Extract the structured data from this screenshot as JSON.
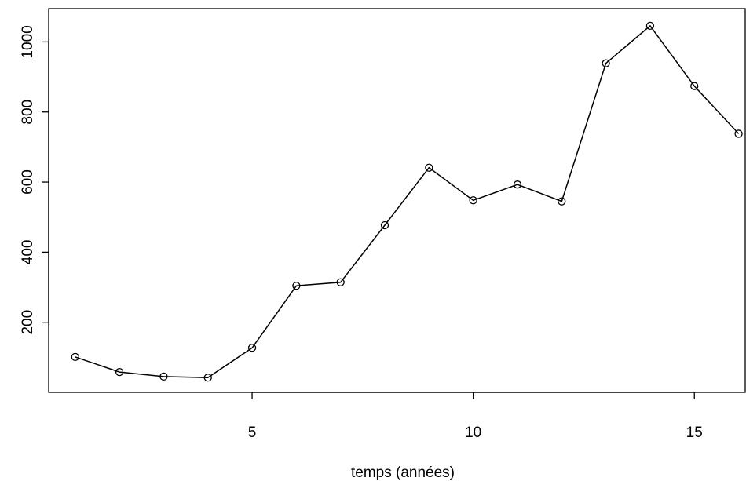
{
  "chart_data": {
    "type": "line",
    "title": "",
    "xlabel": "temps (années)",
    "ylabel": "",
    "x": [
      1,
      2,
      3,
      4,
      5,
      6,
      7,
      8,
      9,
      10,
      11,
      12,
      13,
      14,
      15,
      16
    ],
    "series": [
      {
        "values": [
          101,
          58,
          45,
          42,
          127,
          304,
          314,
          477,
          641,
          548,
          593,
          545,
          939,
          1046,
          874,
          738
        ],
        "color": "#000000",
        "marker": "open-circle"
      }
    ],
    "x_ticks": [
      5,
      10,
      15
    ],
    "y_ticks": [
      200,
      400,
      600,
      800,
      1000
    ],
    "x_tick_labels": [
      "5",
      "10",
      "15"
    ],
    "y_tick_labels": [
      "200",
      "400",
      "600",
      "800",
      "1000"
    ],
    "xlim": [
      0.4,
      16.15
    ],
    "ylim": [
      0,
      1095
    ],
    "grid": false,
    "legend": "none"
  }
}
